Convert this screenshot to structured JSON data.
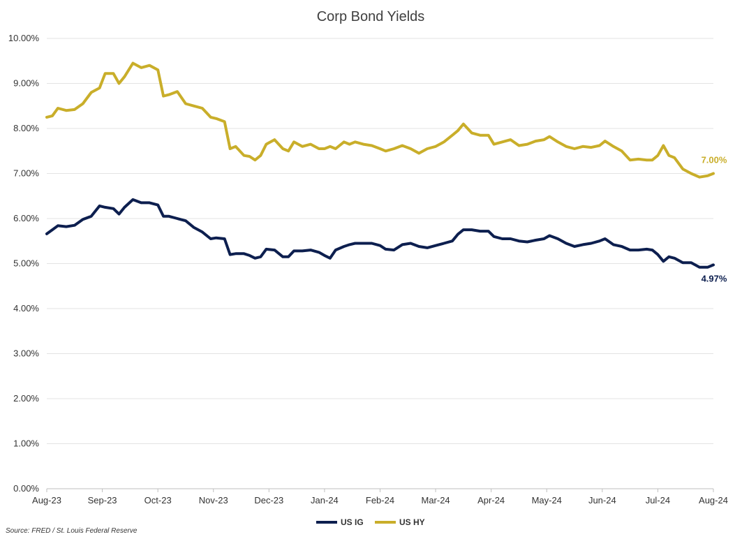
{
  "chart_data": {
    "type": "line",
    "title": "Corp Bond Yields",
    "xlabel": "",
    "ylabel": "",
    "ylim": [
      0,
      10
    ],
    "y_ticks": [
      "0.00%",
      "1.00%",
      "2.00%",
      "3.00%",
      "4.00%",
      "5.00%",
      "6.00%",
      "7.00%",
      "8.00%",
      "9.00%",
      "10.00%"
    ],
    "x_ticks": [
      "Aug-23",
      "Sep-23",
      "Oct-23",
      "Nov-23",
      "Dec-23",
      "Jan-24",
      "Feb-24",
      "Mar-24",
      "Apr-24",
      "May-24",
      "Jun-24",
      "Jul-24",
      "Aug-24"
    ],
    "grid": "horizontal",
    "legend_position": "bottom",
    "series": [
      {
        "name": "US IG",
        "color": "#0d1f4f",
        "end_label": "4.97%",
        "points": [
          [
            0,
            5.66
          ],
          [
            0.1,
            5.75
          ],
          [
            0.2,
            5.84
          ],
          [
            0.35,
            5.82
          ],
          [
            0.5,
            5.85
          ],
          [
            0.65,
            5.98
          ],
          [
            0.8,
            6.05
          ],
          [
            0.95,
            6.28
          ],
          [
            1.05,
            6.25
          ],
          [
            1.2,
            6.22
          ],
          [
            1.3,
            6.1
          ],
          [
            1.4,
            6.25
          ],
          [
            1.55,
            6.42
          ],
          [
            1.7,
            6.35
          ],
          [
            1.85,
            6.35
          ],
          [
            2.0,
            6.3
          ],
          [
            2.1,
            6.05
          ],
          [
            2.2,
            6.05
          ],
          [
            2.35,
            6.0
          ],
          [
            2.5,
            5.95
          ],
          [
            2.65,
            5.8
          ],
          [
            2.8,
            5.7
          ],
          [
            2.95,
            5.55
          ],
          [
            3.05,
            5.57
          ],
          [
            3.2,
            5.55
          ],
          [
            3.3,
            5.2
          ],
          [
            3.4,
            5.22
          ],
          [
            3.55,
            5.22
          ],
          [
            3.65,
            5.18
          ],
          [
            3.75,
            5.12
          ],
          [
            3.85,
            5.15
          ],
          [
            3.95,
            5.32
          ],
          [
            4.1,
            5.3
          ],
          [
            4.25,
            5.15
          ],
          [
            4.35,
            5.15
          ],
          [
            4.45,
            5.28
          ],
          [
            4.6,
            5.28
          ],
          [
            4.75,
            5.3
          ],
          [
            4.9,
            5.25
          ],
          [
            5.0,
            5.18
          ],
          [
            5.1,
            5.12
          ],
          [
            5.2,
            5.3
          ],
          [
            5.35,
            5.38
          ],
          [
            5.45,
            5.42
          ],
          [
            5.55,
            5.45
          ],
          [
            5.7,
            5.45
          ],
          [
            5.85,
            5.45
          ],
          [
            6.0,
            5.4
          ],
          [
            6.1,
            5.32
          ],
          [
            6.25,
            5.3
          ],
          [
            6.4,
            5.42
          ],
          [
            6.55,
            5.45
          ],
          [
            6.7,
            5.38
          ],
          [
            6.85,
            5.35
          ],
          [
            7.0,
            5.4
          ],
          [
            7.15,
            5.45
          ],
          [
            7.3,
            5.5
          ],
          [
            7.4,
            5.65
          ],
          [
            7.5,
            5.75
          ],
          [
            7.65,
            5.75
          ],
          [
            7.8,
            5.72
          ],
          [
            7.95,
            5.72
          ],
          [
            8.05,
            5.6
          ],
          [
            8.2,
            5.55
          ],
          [
            8.35,
            5.55
          ],
          [
            8.5,
            5.5
          ],
          [
            8.65,
            5.48
          ],
          [
            8.8,
            5.52
          ],
          [
            8.95,
            5.55
          ],
          [
            9.05,
            5.62
          ],
          [
            9.2,
            5.55
          ],
          [
            9.35,
            5.45
          ],
          [
            9.5,
            5.38
          ],
          [
            9.65,
            5.42
          ],
          [
            9.8,
            5.45
          ],
          [
            9.95,
            5.5
          ],
          [
            10.05,
            5.55
          ],
          [
            10.2,
            5.42
          ],
          [
            10.35,
            5.38
          ],
          [
            10.5,
            5.3
          ],
          [
            10.65,
            5.3
          ],
          [
            10.8,
            5.32
          ],
          [
            10.9,
            5.3
          ],
          [
            11.0,
            5.2
          ],
          [
            11.1,
            5.05
          ],
          [
            11.2,
            5.15
          ],
          [
            11.3,
            5.12
          ],
          [
            11.45,
            5.02
          ],
          [
            11.6,
            5.02
          ],
          [
            11.75,
            4.92
          ],
          [
            11.9,
            4.92
          ],
          [
            12.0,
            4.97
          ]
        ]
      },
      {
        "name": "US HY",
        "color": "#c9ae2a",
        "end_label": "7.00%",
        "points": [
          [
            0,
            8.25
          ],
          [
            0.1,
            8.28
          ],
          [
            0.2,
            8.45
          ],
          [
            0.35,
            8.4
          ],
          [
            0.5,
            8.42
          ],
          [
            0.65,
            8.55
          ],
          [
            0.8,
            8.8
          ],
          [
            0.95,
            8.9
          ],
          [
            1.05,
            9.22
          ],
          [
            1.2,
            9.22
          ],
          [
            1.3,
            9.0
          ],
          [
            1.4,
            9.15
          ],
          [
            1.55,
            9.45
          ],
          [
            1.7,
            9.35
          ],
          [
            1.85,
            9.4
          ],
          [
            2.0,
            9.3
          ],
          [
            2.1,
            8.72
          ],
          [
            2.2,
            8.75
          ],
          [
            2.35,
            8.82
          ],
          [
            2.5,
            8.55
          ],
          [
            2.65,
            8.5
          ],
          [
            2.8,
            8.45
          ],
          [
            2.95,
            8.25
          ],
          [
            3.05,
            8.22
          ],
          [
            3.2,
            8.15
          ],
          [
            3.3,
            7.55
          ],
          [
            3.4,
            7.6
          ],
          [
            3.55,
            7.4
          ],
          [
            3.65,
            7.38
          ],
          [
            3.75,
            7.3
          ],
          [
            3.85,
            7.4
          ],
          [
            3.95,
            7.65
          ],
          [
            4.1,
            7.75
          ],
          [
            4.25,
            7.55
          ],
          [
            4.35,
            7.5
          ],
          [
            4.45,
            7.7
          ],
          [
            4.6,
            7.6
          ],
          [
            4.75,
            7.65
          ],
          [
            4.9,
            7.55
          ],
          [
            5.0,
            7.55
          ],
          [
            5.1,
            7.6
          ],
          [
            5.2,
            7.55
          ],
          [
            5.35,
            7.7
          ],
          [
            5.45,
            7.65
          ],
          [
            5.55,
            7.7
          ],
          [
            5.7,
            7.65
          ],
          [
            5.85,
            7.62
          ],
          [
            6.0,
            7.55
          ],
          [
            6.1,
            7.5
          ],
          [
            6.25,
            7.55
          ],
          [
            6.4,
            7.62
          ],
          [
            6.55,
            7.55
          ],
          [
            6.7,
            7.45
          ],
          [
            6.85,
            7.55
          ],
          [
            7.0,
            7.6
          ],
          [
            7.15,
            7.7
          ],
          [
            7.3,
            7.85
          ],
          [
            7.4,
            7.95
          ],
          [
            7.5,
            8.1
          ],
          [
            7.65,
            7.9
          ],
          [
            7.8,
            7.85
          ],
          [
            7.95,
            7.85
          ],
          [
            8.05,
            7.65
          ],
          [
            8.2,
            7.7
          ],
          [
            8.35,
            7.75
          ],
          [
            8.5,
            7.62
          ],
          [
            8.65,
            7.65
          ],
          [
            8.8,
            7.72
          ],
          [
            8.95,
            7.75
          ],
          [
            9.05,
            7.82
          ],
          [
            9.2,
            7.7
          ],
          [
            9.35,
            7.6
          ],
          [
            9.5,
            7.55
          ],
          [
            9.65,
            7.6
          ],
          [
            9.8,
            7.58
          ],
          [
            9.95,
            7.62
          ],
          [
            10.05,
            7.72
          ],
          [
            10.2,
            7.6
          ],
          [
            10.35,
            7.5
          ],
          [
            10.5,
            7.3
          ],
          [
            10.65,
            7.32
          ],
          [
            10.8,
            7.3
          ],
          [
            10.9,
            7.3
          ],
          [
            11.0,
            7.4
          ],
          [
            11.1,
            7.62
          ],
          [
            11.2,
            7.4
          ],
          [
            11.3,
            7.35
          ],
          [
            11.45,
            7.1
          ],
          [
            11.6,
            7.0
          ],
          [
            11.75,
            6.92
          ],
          [
            11.9,
            6.95
          ],
          [
            12.0,
            7.0
          ]
        ]
      }
    ]
  },
  "footer": {
    "source": "Source: FRED / St. Louis Federal Reserve"
  }
}
